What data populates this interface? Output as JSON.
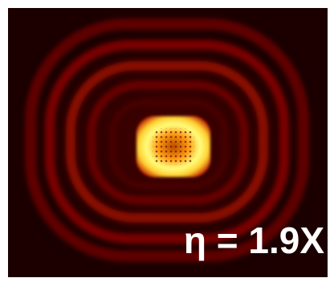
{
  "annotation": "η = 1.9X"
}
